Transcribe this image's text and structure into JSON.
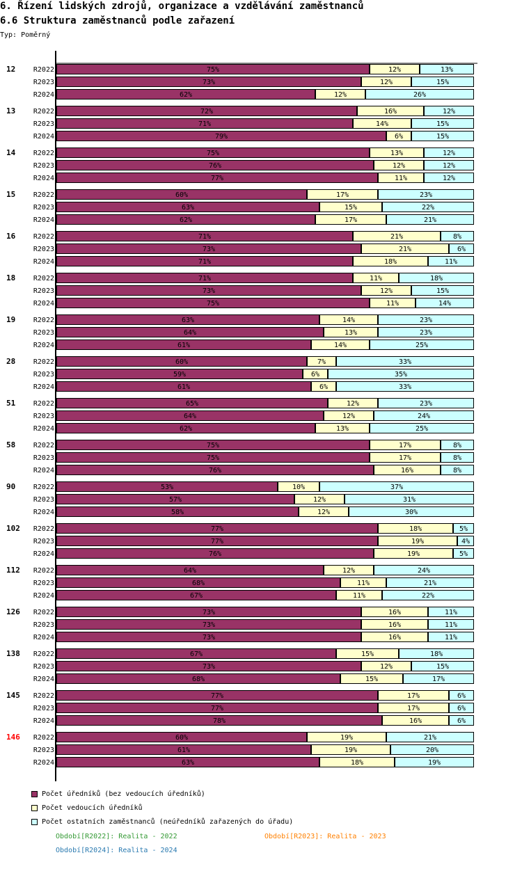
{
  "header": {
    "title": "6. Řízení lidských zdrojů, organizace a vzdělávání zaměstnanců",
    "subtitle": "6.6 Struktura zaměstnanců podle zařazení",
    "type_label": "Typ: Poměrný"
  },
  "legend": [
    {
      "label": "Počet úředníků (bez vedoucích úředníků)",
      "color": "#993366"
    },
    {
      "label": "Počet vedoucích úředníků",
      "color": "#FFFFCC"
    },
    {
      "label": "Počet ostatních zaměstnanců (neúředníků zařazených do úřadu)",
      "color": "#CCFFFF"
    }
  ],
  "periods": [
    {
      "label": "Období[R2022]: Realita - 2022",
      "color": "#339933"
    },
    {
      "label": "Období[R2023]: Realita - 2023",
      "color": "#FF8000"
    },
    {
      "label": "Období[R2024]: Realita - 2024",
      "color": "#2A7AB0"
    }
  ],
  "chart_data": {
    "type": "bar",
    "orientation": "horizontal",
    "stacked": "percent",
    "title": "6.6 Struktura zaměstnanců podle zařazení",
    "xlabel": "",
    "ylabel": "",
    "xlim": [
      0,
      100
    ],
    "value_suffix": "%",
    "series_names": [
      "Počet úředníků (bez vedoucích úředníků)",
      "Počet vedoucích úředníků",
      "Počet ostatních zaměstnanců (neúředníků zařazených do úřadu)"
    ],
    "series_colors": [
      "#993366",
      "#FFFFCC",
      "#CCFFFF"
    ],
    "highlight_group_color": "#FF0000",
    "groups": [
      {
        "label": "12",
        "highlight": false,
        "rows": [
          {
            "period": "R2022",
            "values": [
              75,
              12,
              13
            ]
          },
          {
            "period": "R2023",
            "values": [
              73,
              12,
              15
            ]
          },
          {
            "period": "R2024",
            "values": [
              62,
              12,
              26
            ]
          }
        ]
      },
      {
        "label": "13",
        "highlight": false,
        "rows": [
          {
            "period": "R2022",
            "values": [
              72,
              16,
              12
            ]
          },
          {
            "period": "R2023",
            "values": [
              71,
              14,
              15
            ]
          },
          {
            "period": "R2024",
            "values": [
              79,
              6,
              15
            ]
          }
        ]
      },
      {
        "label": "14",
        "highlight": false,
        "rows": [
          {
            "period": "R2022",
            "values": [
              75,
              13,
              12
            ]
          },
          {
            "period": "R2023",
            "values": [
              76,
              12,
              12
            ]
          },
          {
            "period": "R2024",
            "values": [
              77,
              11,
              12
            ]
          }
        ]
      },
      {
        "label": "15",
        "highlight": false,
        "rows": [
          {
            "period": "R2022",
            "values": [
              60,
              17,
              23
            ]
          },
          {
            "period": "R2023",
            "values": [
              63,
              15,
              22
            ]
          },
          {
            "period": "R2024",
            "values": [
              62,
              17,
              21
            ]
          }
        ]
      },
      {
        "label": "16",
        "highlight": false,
        "rows": [
          {
            "period": "R2022",
            "values": [
              71,
              21,
              8
            ]
          },
          {
            "period": "R2023",
            "values": [
              73,
              21,
              6
            ]
          },
          {
            "period": "R2024",
            "values": [
              71,
              18,
              11
            ]
          }
        ]
      },
      {
        "label": "18",
        "highlight": false,
        "rows": [
          {
            "period": "R2022",
            "values": [
              71,
              11,
              18
            ]
          },
          {
            "period": "R2023",
            "values": [
              73,
              12,
              15
            ]
          },
          {
            "period": "R2024",
            "values": [
              75,
              11,
              14
            ]
          }
        ]
      },
      {
        "label": "19",
        "highlight": false,
        "rows": [
          {
            "period": "R2022",
            "values": [
              63,
              14,
              23
            ]
          },
          {
            "period": "R2023",
            "values": [
              64,
              13,
              23
            ]
          },
          {
            "period": "R2024",
            "values": [
              61,
              14,
              25
            ]
          }
        ]
      },
      {
        "label": "28",
        "highlight": false,
        "rows": [
          {
            "period": "R2022",
            "values": [
              60,
              7,
              33
            ]
          },
          {
            "period": "R2023",
            "values": [
              59,
              6,
              35
            ]
          },
          {
            "period": "R2024",
            "values": [
              61,
              6,
              33
            ]
          }
        ]
      },
      {
        "label": "51",
        "highlight": false,
        "rows": [
          {
            "period": "R2022",
            "values": [
              65,
              12,
              23
            ]
          },
          {
            "period": "R2023",
            "values": [
              64,
              12,
              24
            ]
          },
          {
            "period": "R2024",
            "values": [
              62,
              13,
              25
            ]
          }
        ]
      },
      {
        "label": "58",
        "highlight": false,
        "rows": [
          {
            "period": "R2022",
            "values": [
              75,
              17,
              8
            ]
          },
          {
            "period": "R2023",
            "values": [
              75,
              17,
              8
            ]
          },
          {
            "period": "R2024",
            "values": [
              76,
              16,
              8
            ]
          }
        ]
      },
      {
        "label": "90",
        "highlight": false,
        "rows": [
          {
            "period": "R2022",
            "values": [
              53,
              10,
              37
            ]
          },
          {
            "period": "R2023",
            "values": [
              57,
              12,
              31
            ]
          },
          {
            "period": "R2024",
            "values": [
              58,
              12,
              30
            ]
          }
        ]
      },
      {
        "label": "102",
        "highlight": false,
        "rows": [
          {
            "period": "R2022",
            "values": [
              77,
              18,
              5
            ]
          },
          {
            "period": "R2023",
            "values": [
              77,
              19,
              4
            ]
          },
          {
            "period": "R2024",
            "values": [
              76,
              19,
              5
            ]
          }
        ]
      },
      {
        "label": "112",
        "highlight": false,
        "rows": [
          {
            "period": "R2022",
            "values": [
              64,
              12,
              24
            ]
          },
          {
            "period": "R2023",
            "values": [
              68,
              11,
              21
            ]
          },
          {
            "period": "R2024",
            "values": [
              67,
              11,
              22
            ]
          }
        ]
      },
      {
        "label": "126",
        "highlight": false,
        "rows": [
          {
            "period": "R2022",
            "values": [
              73,
              16,
              11
            ]
          },
          {
            "period": "R2023",
            "values": [
              73,
              16,
              11
            ]
          },
          {
            "period": "R2024",
            "values": [
              73,
              16,
              11
            ]
          }
        ]
      },
      {
        "label": "138",
        "highlight": false,
        "rows": [
          {
            "period": "R2022",
            "values": [
              67,
              15,
              18
            ]
          },
          {
            "period": "R2023",
            "values": [
              73,
              12,
              15
            ]
          },
          {
            "period": "R2024",
            "values": [
              68,
              15,
              17
            ]
          }
        ]
      },
      {
        "label": "145",
        "highlight": false,
        "rows": [
          {
            "period": "R2022",
            "values": [
              77,
              17,
              6
            ]
          },
          {
            "period": "R2023",
            "values": [
              77,
              17,
              6
            ]
          },
          {
            "period": "R2024",
            "values": [
              78,
              16,
              6
            ]
          }
        ]
      },
      {
        "label": "146",
        "highlight": true,
        "rows": [
          {
            "period": "R2022",
            "values": [
              60,
              19,
              21
            ]
          },
          {
            "period": "R2023",
            "values": [
              61,
              19,
              20
            ]
          },
          {
            "period": "R2024",
            "values": [
              63,
              18,
              19
            ]
          }
        ]
      }
    ]
  }
}
